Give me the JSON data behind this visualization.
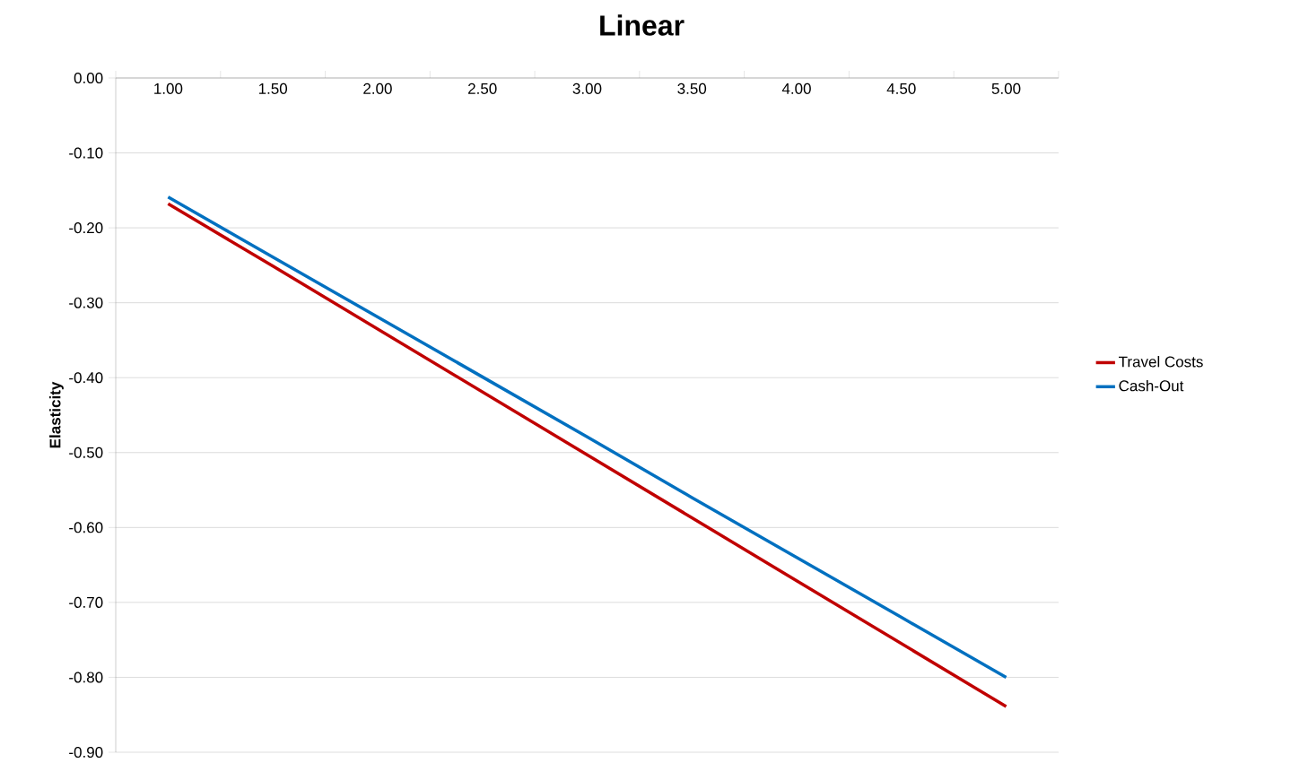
{
  "chart_data": {
    "type": "line",
    "title": "Linear",
    "ylabel": "Elasticity",
    "categories": [
      "1.00",
      "1.50",
      "2.00",
      "2.50",
      "3.00",
      "3.50",
      "4.00",
      "4.50",
      "5.00"
    ],
    "series": [
      {
        "name": "Travel Costs",
        "color": "#c00000",
        "values": [
          -0.168,
          -0.251,
          -0.335,
          -0.419,
          -0.503,
          -0.587,
          -0.671,
          -0.755,
          -0.839
        ]
      },
      {
        "name": "Cash-Out",
        "color": "#0070c0",
        "values": [
          -0.159,
          -0.239,
          -0.319,
          -0.399,
          -0.479,
          -0.56,
          -0.64,
          -0.72,
          -0.8
        ]
      }
    ],
    "ylim": [
      -0.9,
      0
    ],
    "yticks": [
      {
        "value": -0.9,
        "label": "-0.90"
      },
      {
        "value": -0.8,
        "label": "-0.80"
      },
      {
        "value": -0.7,
        "label": "-0.70"
      },
      {
        "value": -0.6,
        "label": "-0.60"
      },
      {
        "value": -0.5,
        "label": "-0.50"
      },
      {
        "value": -0.4,
        "label": "-0.40"
      },
      {
        "value": -0.3,
        "label": "-0.30"
      },
      {
        "value": -0.2,
        "label": "-0.20"
      },
      {
        "value": -0.1,
        "label": "-0.10"
      },
      {
        "value": 0,
        "label": "0.00"
      }
    ],
    "grid": "y",
    "legend": "right",
    "marker": "none",
    "line_style": "solid"
  }
}
